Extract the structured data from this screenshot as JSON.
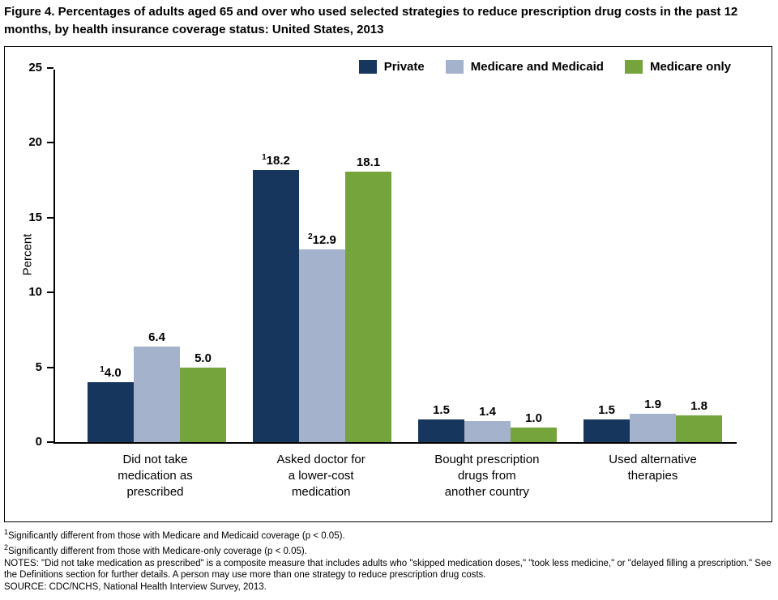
{
  "title": "Figure 4. Percentages of adults aged 65 and over who used selected strategies to reduce prescription drug costs in the past 12 months, by health insurance coverage status: United States, 2013",
  "chart_data": {
    "type": "bar",
    "title": "Figure 4. Percentages of adults aged 65 and over who used selected strategies to reduce prescription drug costs in the past 12 months, by health insurance coverage status: United States, 2013",
    "categories": [
      [
        "Did not take",
        "medication as",
        "prescribed"
      ],
      [
        "Asked doctor for",
        "a lower-cost",
        "medication"
      ],
      [
        "Bought prescription",
        "drugs from",
        "another country"
      ],
      [
        "Used alternative",
        "therapies"
      ]
    ],
    "series": [
      {
        "name": "Private",
        "color": "#17365d",
        "values": [
          4.0,
          18.2,
          1.5,
          1.5
        ],
        "labels": [
          "4.0",
          "18.2",
          "1.5",
          "1.5"
        ],
        "sups": [
          "1",
          "1",
          "",
          ""
        ]
      },
      {
        "name": "Medicare and Medicaid",
        "color": "#a4b2cc",
        "values": [
          6.4,
          12.9,
          1.4,
          1.9
        ],
        "labels": [
          "6.4",
          "12.9",
          "1.4",
          "1.9"
        ],
        "sups": [
          "",
          "2",
          "",
          ""
        ]
      },
      {
        "name": "Medicare only",
        "color": "#75a33c",
        "values": [
          5.0,
          18.1,
          1.0,
          1.8
        ],
        "labels": [
          "5.0",
          "18.1",
          "1.0",
          "1.8"
        ],
        "sups": [
          "",
          "",
          "",
          ""
        ]
      }
    ],
    "xlabel": "",
    "ylabel": "Percent",
    "ylim": [
      0,
      25
    ],
    "yticks": [
      0,
      5,
      10,
      15,
      20,
      25
    ],
    "legend_position": "top-right",
    "grid": false
  },
  "footnotes": [
    {
      "sup": "1",
      "text": "Significantly different from those with Medicare and Medicaid coverage (p < 0.05)."
    },
    {
      "sup": "2",
      "text": "Significantly different from those with Medicare-only coverage (p < 0.05)."
    },
    {
      "sup": "",
      "text": "NOTES: \"Did not take medication as prescribed\" is a composite measure that includes adults who \"skipped medication doses,\" \"took less medicine,\" or \"delayed filling a prescription.\" See the Definitions section for further details. A person may use more than one strategy to reduce prescription drug costs."
    },
    {
      "sup": "",
      "text": "SOURCE: CDC/NCHS, National Health Interview Survey, 2013."
    }
  ]
}
